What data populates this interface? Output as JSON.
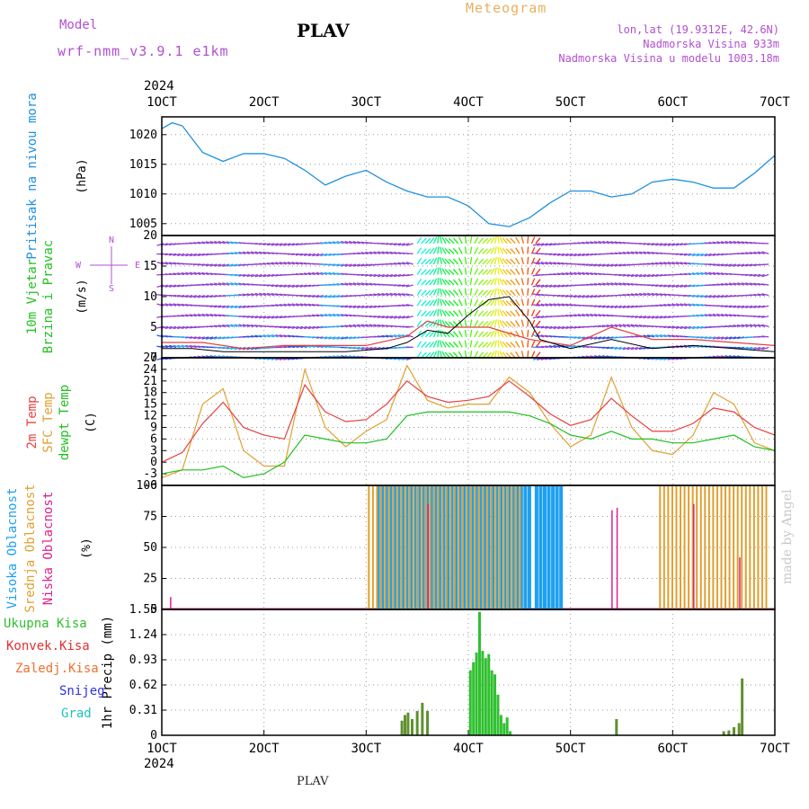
{
  "header": {
    "model_label": "Model",
    "model_name": "wrf-nmm_v3.9.1 e1km",
    "title": "PLAV",
    "subtitle": "Meteogram",
    "location": "lon,lat (19.9312E, 42.6N)",
    "elevation": "Nadmorska Visina 933m",
    "model_elevation": "Nadmorska Visina u modelu 1003.18m"
  },
  "footer": "PLAV",
  "watermark": "made by Angel",
  "colors": {
    "pressure": "#1e90e0",
    "wind_speed": "#000000",
    "gust": "#e04040",
    "t2m": "#e84040",
    "sfc": "#e0a030",
    "dewpt": "#20c020",
    "high_cloud": "#1ea0f0",
    "mid_cloud": "#e0a030",
    "low_cloud": "#e0208a",
    "total_precip": "#30c030",
    "conv_precip": "#e03030",
    "frozen_precip": "#f07030",
    "snow": "#3030e0",
    "hail": "#20c0c0"
  },
  "chart_data": [
    {
      "type": "line",
      "title": "Pritisak na nivou mora",
      "ylabel": "(hPa)",
      "ylim": [
        1003,
        1023
      ],
      "yticks": [
        "1005",
        "1010",
        "1015",
        "1020"
      ],
      "x_top_year": "2024",
      "xticks": [
        "1OCT",
        "2OCT",
        "3OCT",
        "4OCT",
        "5OCT",
        "6OCT",
        "7OCT"
      ],
      "series": [
        {
          "values_x": [
            1.0,
            1.1,
            1.2,
            1.4,
            1.6,
            1.8,
            2.0,
            2.2,
            2.4,
            2.6,
            2.8,
            3.0,
            3.2,
            3.4,
            3.6,
            3.8,
            4.0,
            4.2,
            4.4,
            4.6,
            4.8,
            5.0,
            5.2,
            5.4,
            5.6,
            5.8,
            6.0,
            6.2,
            6.4,
            6.6,
            6.8,
            7.0
          ],
          "values_y": [
            1021,
            1022,
            1021.5,
            1017,
            1015.5,
            1016.8,
            1016.8,
            1016,
            1014,
            1011.5,
            1013,
            1014,
            1012,
            1010.5,
            1009.5,
            1009.5,
            1008,
            1005,
            1004.5,
            1006,
            1008.5,
            1010.5,
            1010.5,
            1009.5,
            1010,
            1012,
            1012.5,
            1012,
            1011,
            1011,
            1013.5,
            1016.5
          ]
        }
      ]
    },
    {
      "type": "line",
      "title_1": "10m Vjetar",
      "title_2": "Brzina i Pravac",
      "ylabel": "(m/s)",
      "compass": [
        "N",
        "W",
        "E",
        "S"
      ],
      "ylim": [
        0,
        20
      ],
      "yticks": [
        "0",
        "5",
        "10",
        "15",
        "20"
      ],
      "series": [
        {
          "values_x": [
            1.0,
            1.3,
            1.6,
            2.0,
            2.4,
            2.8,
            3.2,
            3.4,
            3.6,
            3.8,
            4.0,
            4.2,
            4.4,
            4.6,
            4.7,
            5.0,
            5.4,
            5.8,
            6.2,
            6.6,
            7.0
          ],
          "values_y": [
            1.5,
            1.5,
            1,
            1,
            1,
            1,
            1.5,
            2.5,
            4.5,
            4,
            7,
            9.5,
            10,
            6,
            3,
            1.5,
            3,
            1.5,
            2,
            1.5,
            1
          ]
        },
        {
          "values_x": [
            1.0,
            1.4,
            1.8,
            2.2,
            2.6,
            3.0,
            3.4,
            3.6,
            3.8,
            4.2,
            4.6,
            5.0,
            5.4,
            5.8,
            6.2,
            6.6,
            7.0
          ],
          "values_y": [
            2.5,
            2.5,
            1.5,
            2,
            2,
            2,
            3.5,
            6,
            5,
            5,
            3,
            2,
            5,
            3,
            3,
            2.5,
            2
          ]
        }
      ]
    },
    {
      "type": "line",
      "title_1": "2m Temp",
      "title_2": "SFC Temp",
      "title_3": "dewpt Temp",
      "ylabel": "(C)",
      "ylim": [
        -6,
        27
      ],
      "yticks": [
        "-6",
        "-3",
        "0",
        "3",
        "6",
        "9",
        "12",
        "15",
        "18",
        "21",
        "24",
        "27"
      ],
      "series": [
        {
          "values_x": [
            1.0,
            1.2,
            1.4,
            1.6,
            1.8,
            2.0,
            2.2,
            2.4,
            2.6,
            2.8,
            3.0,
            3.2,
            3.4,
            3.6,
            3.8,
            4.0,
            4.2,
            4.4,
            4.6,
            4.8,
            5.0,
            5.2,
            5.4,
            5.6,
            5.8,
            6.0,
            6.2,
            6.4,
            6.6,
            6.8,
            7.0
          ],
          "values_y": [
            0,
            2.5,
            10,
            15.5,
            9,
            7,
            6,
            20,
            13,
            10.5,
            11,
            15,
            21,
            17,
            15.5,
            16,
            17,
            21,
            17,
            12.5,
            9.5,
            11,
            16.5,
            12,
            8,
            8,
            10,
            14,
            13,
            9,
            7
          ]
        },
        {
          "values_x": [
            1.0,
            1.2,
            1.4,
            1.6,
            1.8,
            2.0,
            2.2,
            2.4,
            2.6,
            2.8,
            3.0,
            3.2,
            3.4,
            3.6,
            3.8,
            4.0,
            4.2,
            4.4,
            4.6,
            4.8,
            5.0,
            5.2,
            5.4,
            5.6,
            5.8,
            6.0,
            6.2,
            6.4,
            6.6,
            6.8,
            7.0
          ],
          "values_y": [
            -4,
            -2,
            15,
            19,
            3,
            -1,
            -1,
            24,
            9,
            4,
            8,
            11,
            25,
            16,
            14,
            15,
            15,
            22,
            18,
            10,
            4,
            7,
            22,
            9,
            3,
            2,
            7,
            18,
            15,
            5,
            3
          ]
        },
        {
          "values_x": [
            1.0,
            1.2,
            1.4,
            1.6,
            1.8,
            2.0,
            2.2,
            2.4,
            2.6,
            2.8,
            3.0,
            3.2,
            3.4,
            3.6,
            3.8,
            4.0,
            4.2,
            4.4,
            4.6,
            4.8,
            5.0,
            5.2,
            5.4,
            5.6,
            5.8,
            6.0,
            6.2,
            6.4,
            6.6,
            6.8,
            7.0
          ],
          "values_y": [
            -3,
            -2,
            -2,
            -1,
            -4,
            -3,
            0,
            7,
            6,
            5,
            5,
            6,
            12,
            13,
            13,
            13,
            13,
            13,
            12,
            10,
            7,
            6,
            8,
            6,
            6,
            5,
            5,
            6,
            7,
            4,
            3
          ]
        }
      ]
    },
    {
      "type": "bar",
      "title_1": "Visoka Oblacnost",
      "title_2": "Srednja Oblacnost",
      "title_3": "Niska Oblacnost",
      "ylabel": "(%)",
      "ylim": [
        0,
        100
      ],
      "yticks": [
        "0",
        "25",
        "50",
        "75",
        "100"
      ],
      "series": [
        {
          "name": "high",
          "x_ranges": [
            [
              3.1,
              4.6
            ],
            [
              4.65,
              4.9
            ]
          ],
          "value": 100
        },
        {
          "name": "mid",
          "x_ranges": [
            [
              3.0,
              4.5
            ],
            [
              5.85,
              6.9
            ]
          ],
          "value": 100
        },
        {
          "name": "low",
          "x": [
            1.08,
            3.6,
            5.4,
            5.45,
            6.2,
            6.65
          ],
          "values": [
            10,
            85,
            80,
            82,
            85,
            42
          ]
        }
      ]
    },
    {
      "type": "bar",
      "legend": [
        "Ukupna Kisa",
        "Konvek.Kisa",
        "Zaledj.Kisa",
        "Snijeg",
        "Grad"
      ],
      "ylabel": "1hr Precip (mm)",
      "ylim": [
        0,
        1.55
      ],
      "yticks": [
        "0",
        "0.31",
        "0.62",
        "0.93",
        "1.24",
        "1.55"
      ],
      "xticks": [
        "1OCT",
        "2OCT",
        "3OCT",
        "4OCT",
        "5OCT",
        "6OCT",
        "7OCT"
      ],
      "x_bottom_year": "2024",
      "x": [
        3.35,
        3.38,
        3.41,
        3.45,
        3.5,
        3.55,
        3.6,
        4.02,
        4.05,
        4.08,
        4.11,
        4.14,
        4.17,
        4.2,
        4.23,
        4.26,
        4.29,
        4.32,
        4.35,
        4.38,
        4.41,
        5.45,
        6.5,
        6.55,
        6.6,
        6.65,
        6.68
      ],
      "values": [
        0.18,
        0.25,
        0.28,
        0.2,
        0.3,
        0.4,
        0.3,
        0.8,
        0.9,
        1.02,
        1.52,
        1.04,
        0.95,
        1.0,
        0.8,
        0.75,
        0.5,
        0.25,
        0.15,
        0.22,
        0.05,
        0.2,
        0.05,
        0.06,
        0.1,
        0.15,
        0.7
      ]
    }
  ]
}
